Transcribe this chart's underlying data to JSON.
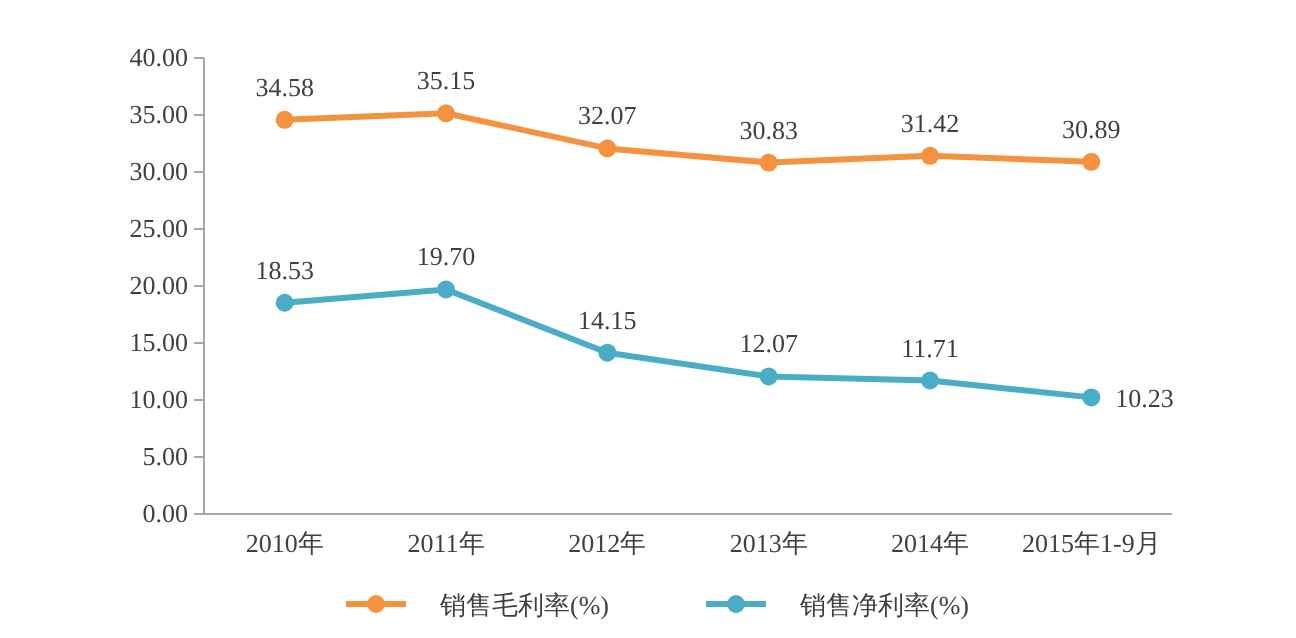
{
  "chart_data": {
    "type": "line",
    "categories": [
      "2010年",
      "2011年",
      "2012年",
      "2013年",
      "2014年",
      "2015年1-9月"
    ],
    "series": [
      {
        "name": "销售毛利率(%)",
        "color": "#f59240",
        "values": [
          34.58,
          35.15,
          32.07,
          30.83,
          31.42,
          30.89
        ],
        "value_labels": [
          "34.58",
          "35.15",
          "32.07",
          "30.83",
          "31.42",
          "30.89"
        ]
      },
      {
        "name": "销售净利率(%)",
        "color": "#4bacc6",
        "values": [
          18.53,
          19.7,
          14.15,
          12.07,
          11.71,
          10.23
        ],
        "value_labels": [
          "18.53",
          "19.70",
          "14.15",
          "12.07",
          "11.71",
          "10.23"
        ]
      }
    ],
    "ylim": [
      0,
      40
    ],
    "yticks": [
      {
        "value": 0,
        "label": "0.00"
      },
      {
        "value": 5,
        "label": "5.00"
      },
      {
        "value": 10,
        "label": "10.00"
      },
      {
        "value": 15,
        "label": "15.00"
      },
      {
        "value": 20,
        "label": "20.00"
      },
      {
        "value": 25,
        "label": "25.00"
      },
      {
        "value": 30,
        "label": "30.00"
      },
      {
        "value": 35,
        "label": "35.00"
      },
      {
        "value": 40,
        "label": "40.00"
      }
    ],
    "grid": false,
    "legend": "bottom",
    "marker": "circle",
    "line_style": "solid"
  }
}
